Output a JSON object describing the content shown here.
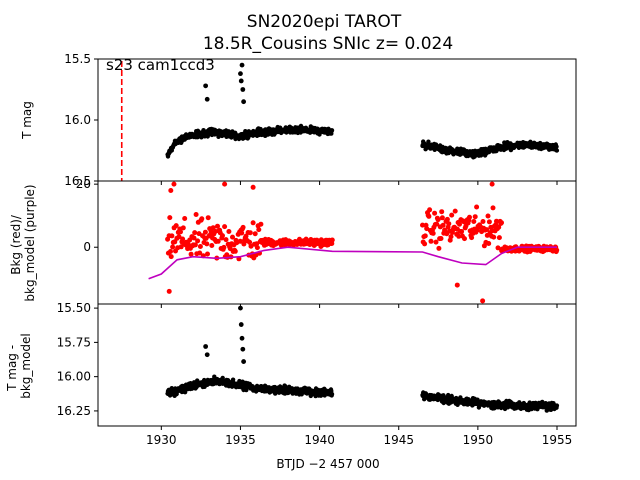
{
  "chart_data": [
    {
      "type": "scatter",
      "title": "SN2020epi  TAROT",
      "subtitle": "18.5R_Cousins SNIc z= 0.024",
      "ylabel": "T mag",
      "xlim": [
        1926,
        1956.2
      ],
      "ylim": [
        16.5,
        15.5
      ],
      "yticks": [
        "15.5",
        "16.0",
        "16.5"
      ],
      "annotation": "s23 cam1ccd3",
      "marker_line_x": 1927.5,
      "marker_line_color": "#ff0000",
      "point_color": "#000000",
      "segments": [
        {
          "x_start": 1930.4,
          "x_end": 1940.8,
          "base": [
            [
              1930.4,
              16.28
            ],
            [
              1931.0,
              16.17
            ],
            [
              1932.0,
              16.12
            ],
            [
              1933.5,
              16.1
            ],
            [
              1935.0,
              16.13
            ],
            [
              1936.5,
              16.1
            ],
            [
              1938.0,
              16.08
            ],
            [
              1940.8,
              16.09
            ]
          ],
          "scatter": 0.04
        },
        {
          "x_start": 1946.5,
          "x_end": 1955.0,
          "base": [
            [
              1946.5,
              16.2
            ],
            [
              1948.0,
              16.25
            ],
            [
              1950.0,
              16.28
            ],
            [
              1951.5,
              16.22
            ],
            [
              1953.0,
              16.2
            ],
            [
              1955.0,
              16.22
            ]
          ],
          "scatter": 0.04
        }
      ],
      "outliers": [
        [
          1932.8,
          15.72
        ],
        [
          1932.9,
          15.83
        ],
        [
          1935.0,
          15.62
        ],
        [
          1935.05,
          15.68
        ],
        [
          1935.1,
          15.55
        ],
        [
          1935.15,
          15.75
        ],
        [
          1935.2,
          15.85
        ]
      ]
    },
    {
      "type": "scatter",
      "ylabel": "Bkg (red)/\nbkg_model (purple)",
      "xlim": [
        1926,
        1956.2
      ],
      "ylim": [
        -18,
        21
      ],
      "yticks": [
        "0",
        "20"
      ],
      "bkg_color": "#ff0000",
      "model_color": "#bf00bf",
      "model_line": [
        [
          1929.2,
          -10
        ],
        [
          1930.0,
          -8.5
        ],
        [
          1931.0,
          -4
        ],
        [
          1932.0,
          -3
        ],
        [
          1933.5,
          -3.5
        ],
        [
          1935.0,
          -3
        ],
        [
          1936.5,
          -1
        ],
        [
          1938.0,
          0
        ],
        [
          1940.8,
          -1.3
        ],
        [
          1946.5,
          -1.5
        ],
        [
          1947.5,
          -3
        ],
        [
          1949.0,
          -5
        ],
        [
          1950.5,
          -5.5
        ],
        [
          1951.5,
          -2
        ],
        [
          1952.5,
          0
        ],
        [
          1955.0,
          0
        ]
      ],
      "bkg_segments": [
        {
          "x_start": 1930.4,
          "x_end": 1936.3,
          "center": 2,
          "spread": 10
        },
        {
          "x_start": 1936.3,
          "x_end": 1940.8,
          "center": 1.5,
          "spread": 1.5
        },
        {
          "x_start": 1946.5,
          "x_end": 1951.5,
          "center": 6,
          "spread": 8
        },
        {
          "x_start": 1951.5,
          "x_end": 1955.0,
          "center": -0.5,
          "spread": 1.2
        }
      ],
      "bkg_outliers": [
        [
          1930.5,
          -14
        ],
        [
          1930.6,
          18
        ],
        [
          1930.8,
          20
        ],
        [
          1948.7,
          -12
        ],
        [
          1950.3,
          -17
        ],
        [
          1950.9,
          20
        ],
        [
          1935.8,
          19
        ],
        [
          1934.0,
          20
        ]
      ]
    },
    {
      "type": "scatter",
      "ylabel": "T mag -\nbkg_model",
      "xlabel": "BTJD −2 457 000",
      "xlim": [
        1926,
        1956.2
      ],
      "ylim": [
        16.36,
        15.47
      ],
      "xticks": [
        "1930",
        "1935",
        "1940",
        "1945",
        "1950",
        "1955"
      ],
      "yticks": [
        "15.50",
        "15.75",
        "16.00",
        "16.25"
      ],
      "point_color": "#000000",
      "segments": [
        {
          "x_start": 1930.4,
          "x_end": 1940.8,
          "base": [
            [
              1930.4,
              16.12
            ],
            [
              1932.0,
              16.07
            ],
            [
              1933.5,
              16.03
            ],
            [
              1935.0,
              16.06
            ],
            [
              1936.5,
              16.09
            ],
            [
              1938.0,
              16.1
            ],
            [
              1940.8,
              16.12
            ]
          ],
          "scatter": 0.04
        },
        {
          "x_start": 1946.5,
          "x_end": 1955.0,
          "base": [
            [
              1946.5,
              16.14
            ],
            [
              1948.5,
              16.17
            ],
            [
              1950.5,
              16.2
            ],
            [
              1952.5,
              16.21
            ],
            [
              1955.0,
              16.22
            ]
          ],
          "scatter": 0.04
        }
      ],
      "outliers": [
        [
          1932.8,
          15.78
        ],
        [
          1932.9,
          15.84
        ],
        [
          1935.0,
          15.5
        ],
        [
          1935.05,
          15.62
        ],
        [
          1935.1,
          15.72
        ],
        [
          1935.15,
          15.8
        ],
        [
          1935.2,
          15.89
        ]
      ]
    }
  ]
}
